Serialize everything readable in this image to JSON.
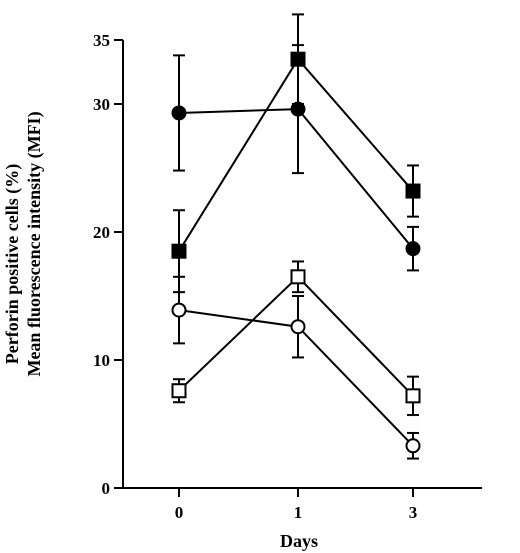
{
  "chart_data": {
    "type": "line",
    "xlabel": "Days",
    "ylabel_line1": "Perforin positive cells (%)",
    "ylabel_line2": "Mean fluorescence intensity (MFI)",
    "x": [
      0,
      1,
      3
    ],
    "x_tick_labels": [
      "0",
      "1",
      "3"
    ],
    "ylim": [
      0,
      35
    ],
    "y_ticks": [
      0,
      10,
      20,
      30,
      35
    ],
    "y_tick_labels": [
      "0",
      "10",
      "20",
      "30",
      "35"
    ],
    "grid": false,
    "legend": "none",
    "series": [
      {
        "marker": "filled-square",
        "values": [
          18.5,
          33.5,
          23.2
        ],
        "err": [
          3.2,
          3.5,
          2.0
        ]
      },
      {
        "marker": "filled-circle",
        "values": [
          29.3,
          29.6,
          18.7
        ],
        "err": [
          4.5,
          5.0,
          1.7
        ]
      },
      {
        "marker": "open-square",
        "values": [
          7.6,
          16.5,
          7.2
        ],
        "err": [
          0.9,
          1.2,
          1.5
        ]
      },
      {
        "marker": "open-circle",
        "values": [
          13.9,
          12.6,
          3.3
        ],
        "err": [
          2.6,
          2.4,
          1.0
        ]
      }
    ],
    "colors": {
      "line": "#000000",
      "fill_open": "#ffffff",
      "fill_solid": "#000000"
    }
  }
}
